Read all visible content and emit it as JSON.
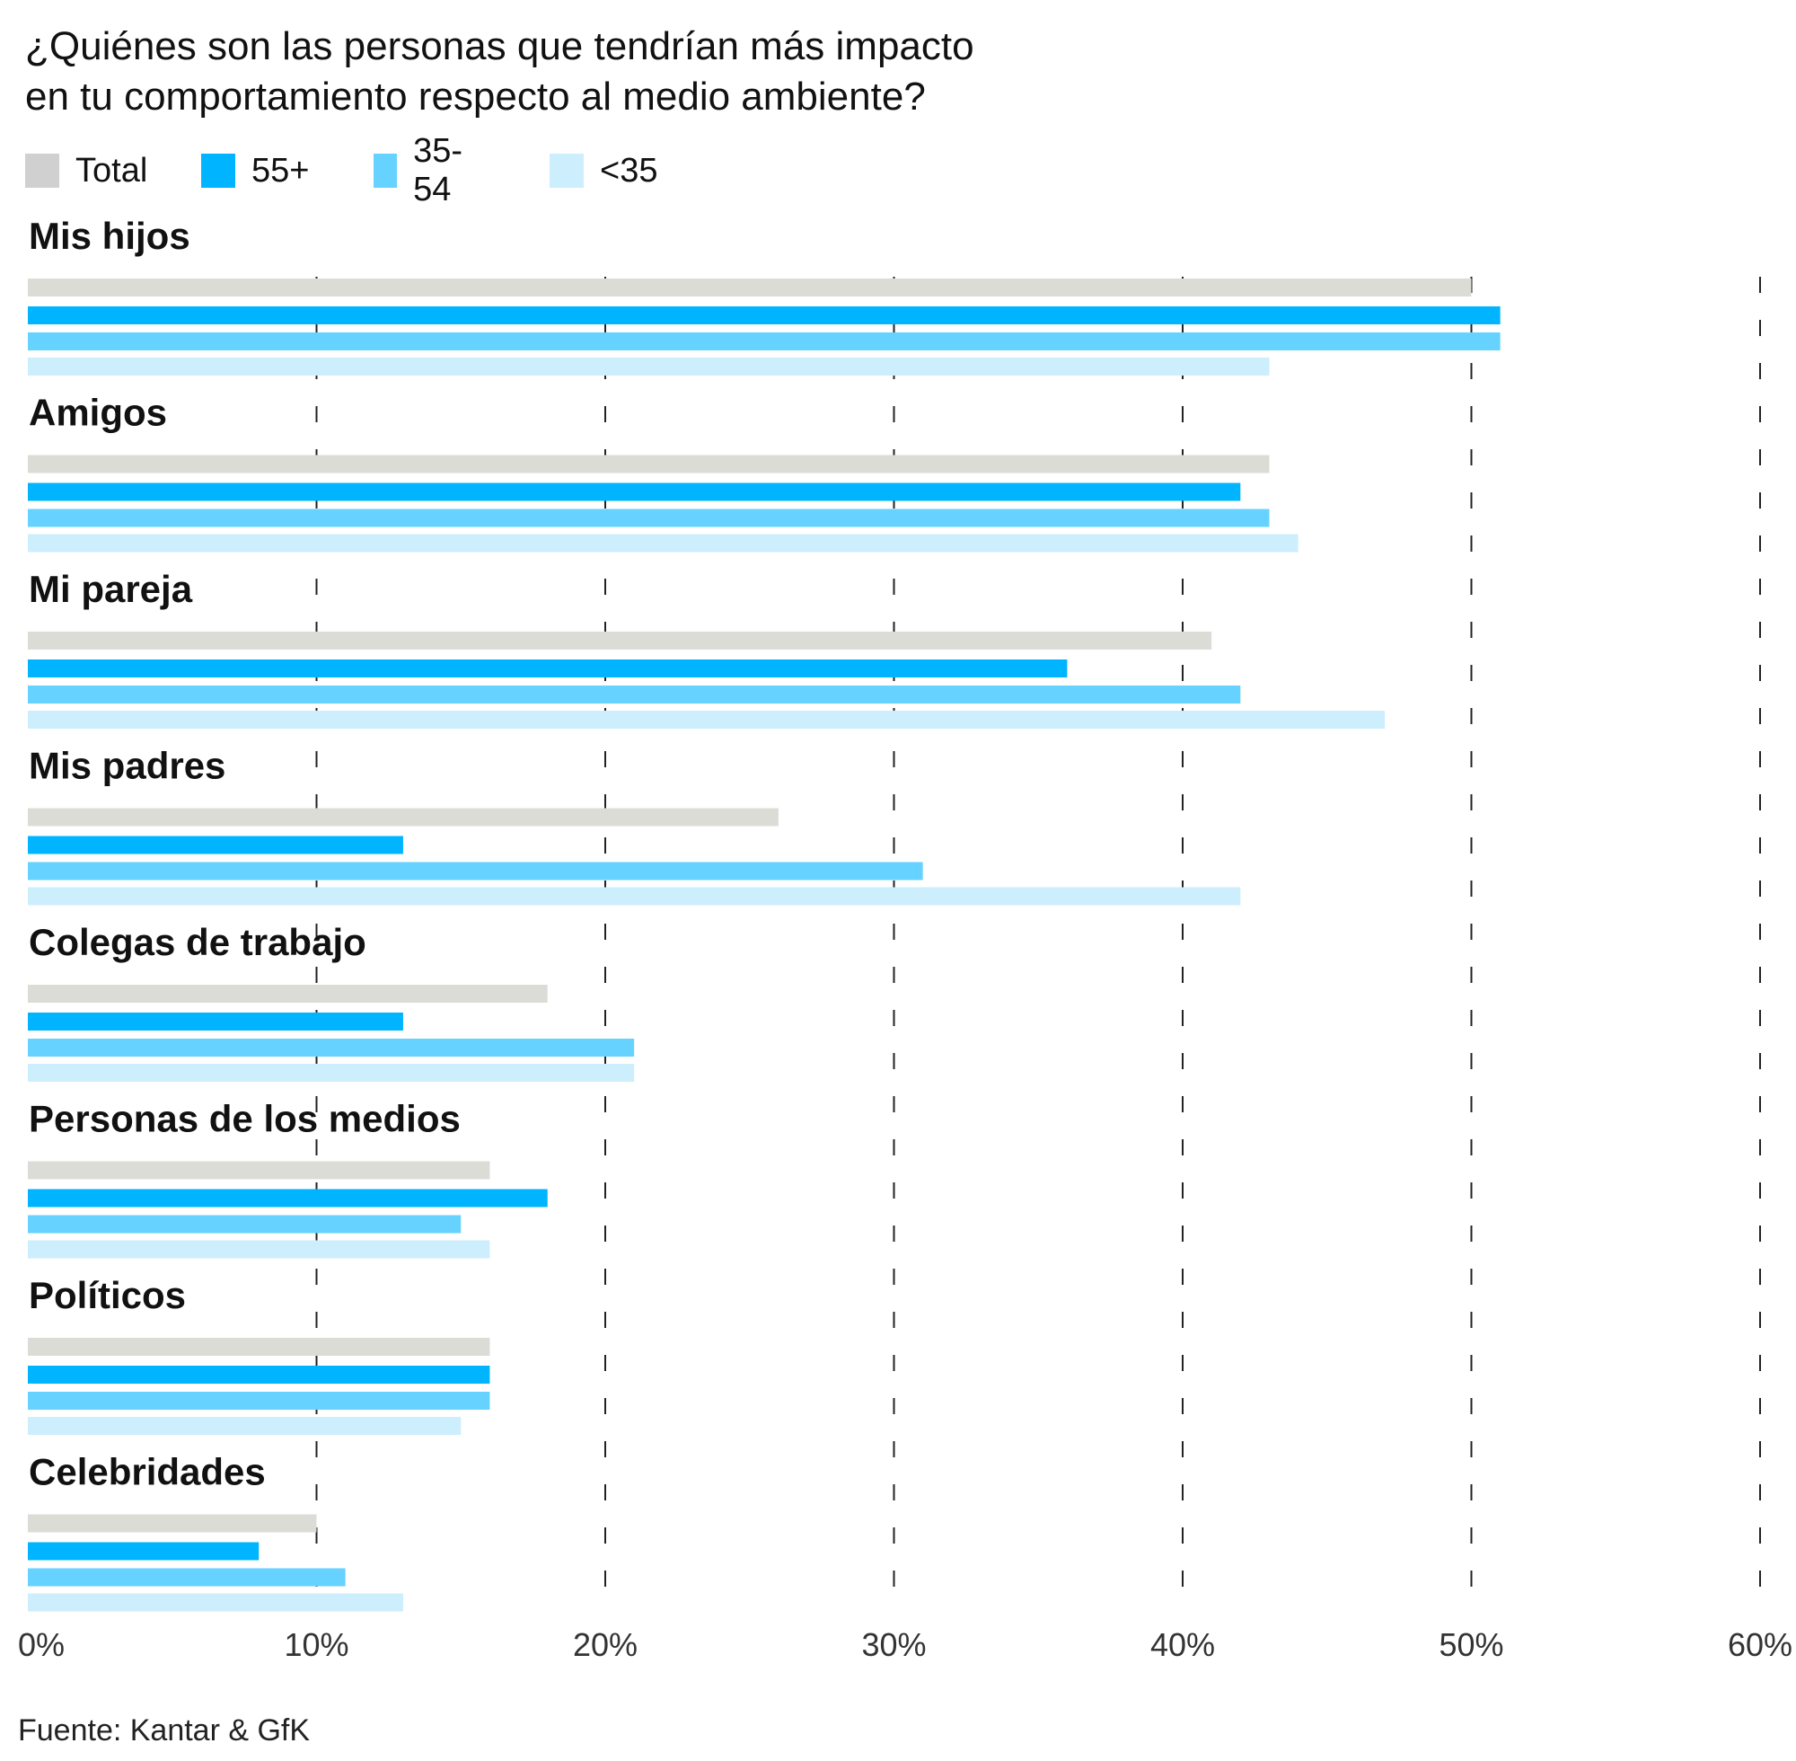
{
  "chart_data": {
    "type": "bar",
    "orientation": "horizontal",
    "title": "¿Quiénes son las personas que tendrían más impacto en tu comportamiento respecto al medio ambiente?",
    "title_lines": [
      "¿Quiénes son las personas que tendrían más impacto",
      "en tu comportamiento respecto al medio ambiente?"
    ],
    "categories": [
      "Mis hijos",
      "Amigos",
      "Mi pareja",
      "Mis padres",
      "Colegas de trabajo",
      "Personas de los medios",
      "Políticos",
      "Celebridades"
    ],
    "series": [
      {
        "name": "Total",
        "color": "#dcdcd7",
        "values": [
          50,
          43,
          41,
          26,
          18,
          16,
          16,
          10
        ]
      },
      {
        "name": "55+",
        "color": "#00b4ff",
        "values": [
          51,
          42,
          36,
          13,
          13,
          18,
          16,
          8
        ]
      },
      {
        "name": "35-54",
        "color": "#66d2ff",
        "values": [
          51,
          43,
          42,
          31,
          21,
          15,
          16,
          11
        ]
      },
      {
        "name": "<35",
        "color": "#cdeefd",
        "values": [
          43,
          44,
          47,
          42,
          21,
          16,
          15,
          13
        ]
      }
    ],
    "xlim": [
      0,
      60
    ],
    "x_ticks": [
      0,
      10,
      20,
      30,
      40,
      50,
      60
    ],
    "x_tick_labels": [
      "0%",
      "10%",
      "20%",
      "30%",
      "40%",
      "50%",
      "60%"
    ],
    "grid": "vertical dashed",
    "legend_position": "top-left"
  },
  "legend_swatch_color_total": "#d0d0d0",
  "source": "Fuente: Kantar & GfK"
}
